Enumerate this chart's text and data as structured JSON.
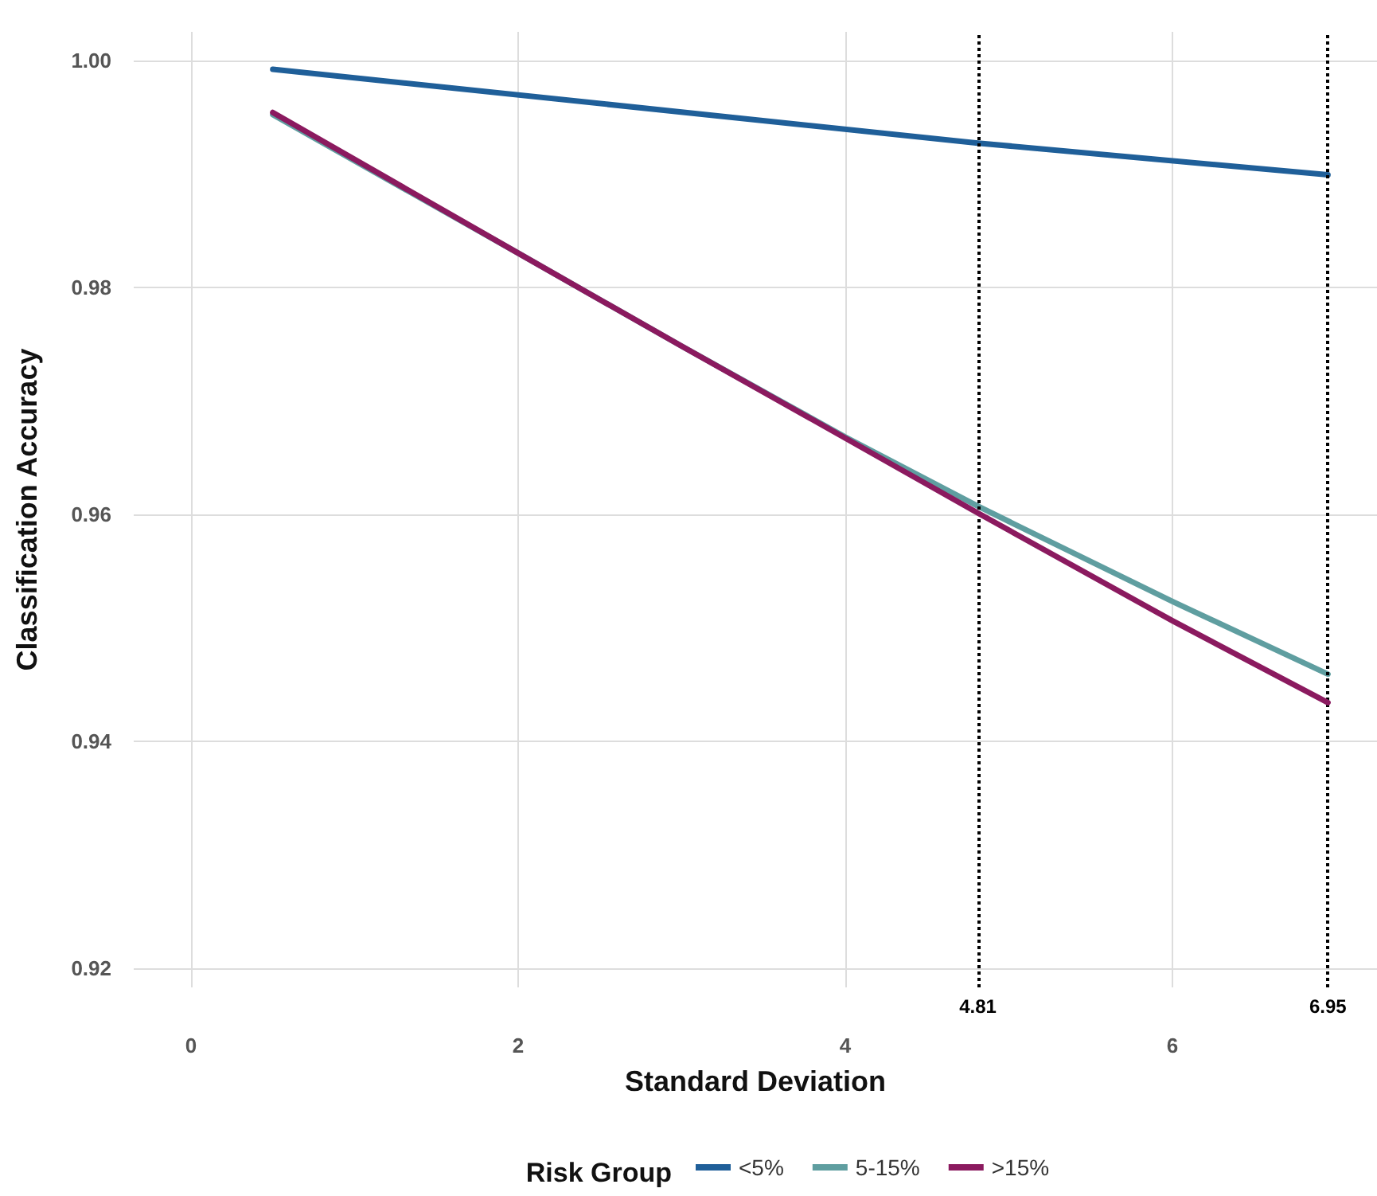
{
  "chart_data": {
    "type": "line",
    "xlabel": "Standard Deviation",
    "ylabel": "Classification Accuracy",
    "legend_title": "Risk Group",
    "xlim": [
      -0.35,
      7.25
    ],
    "xticks": [
      0,
      2,
      4,
      6
    ],
    "ylim": [
      0.9183,
      1.0025
    ],
    "yticks": [
      0.92,
      0.94,
      0.96,
      0.98,
      {
        "value": 1,
        "label": "1.00"
      }
    ],
    "series": [
      {
        "name": "<5%",
        "color": "#1f5f99",
        "x": [
          0.5,
          4.81,
          6.95
        ],
        "values": [
          0.9992,
          0.9927,
          0.9899
        ]
      },
      {
        "name": "5-15%",
        "color": "#5f9ea0",
        "x": [
          0.5,
          2,
          3,
          4,
          4.81,
          6,
          6.95
        ],
        "values": [
          0.9952,
          0.983,
          0.9748,
          0.9668,
          0.9607,
          0.9523,
          0.9459
        ]
      },
      {
        "name": ">15%",
        "color": "#8b1a5f",
        "x": [
          0.5,
          2,
          3,
          4,
          4.81,
          6,
          6.95
        ],
        "values": [
          0.9954,
          0.983,
          0.9748,
          0.9667,
          0.9601,
          0.9506,
          0.9434
        ]
      }
    ],
    "ref_lines": [
      {
        "axis": "x",
        "value": 4.81,
        "label": "4.81",
        "color": "#000000",
        "line_style": "dotted"
      },
      {
        "axis": "x",
        "value": 6.95,
        "label": "6.95",
        "color": "#000000",
        "line_style": "dotted"
      }
    ],
    "grid": true,
    "legend": "bottom",
    "marker": "none",
    "line_style": "solid"
  }
}
